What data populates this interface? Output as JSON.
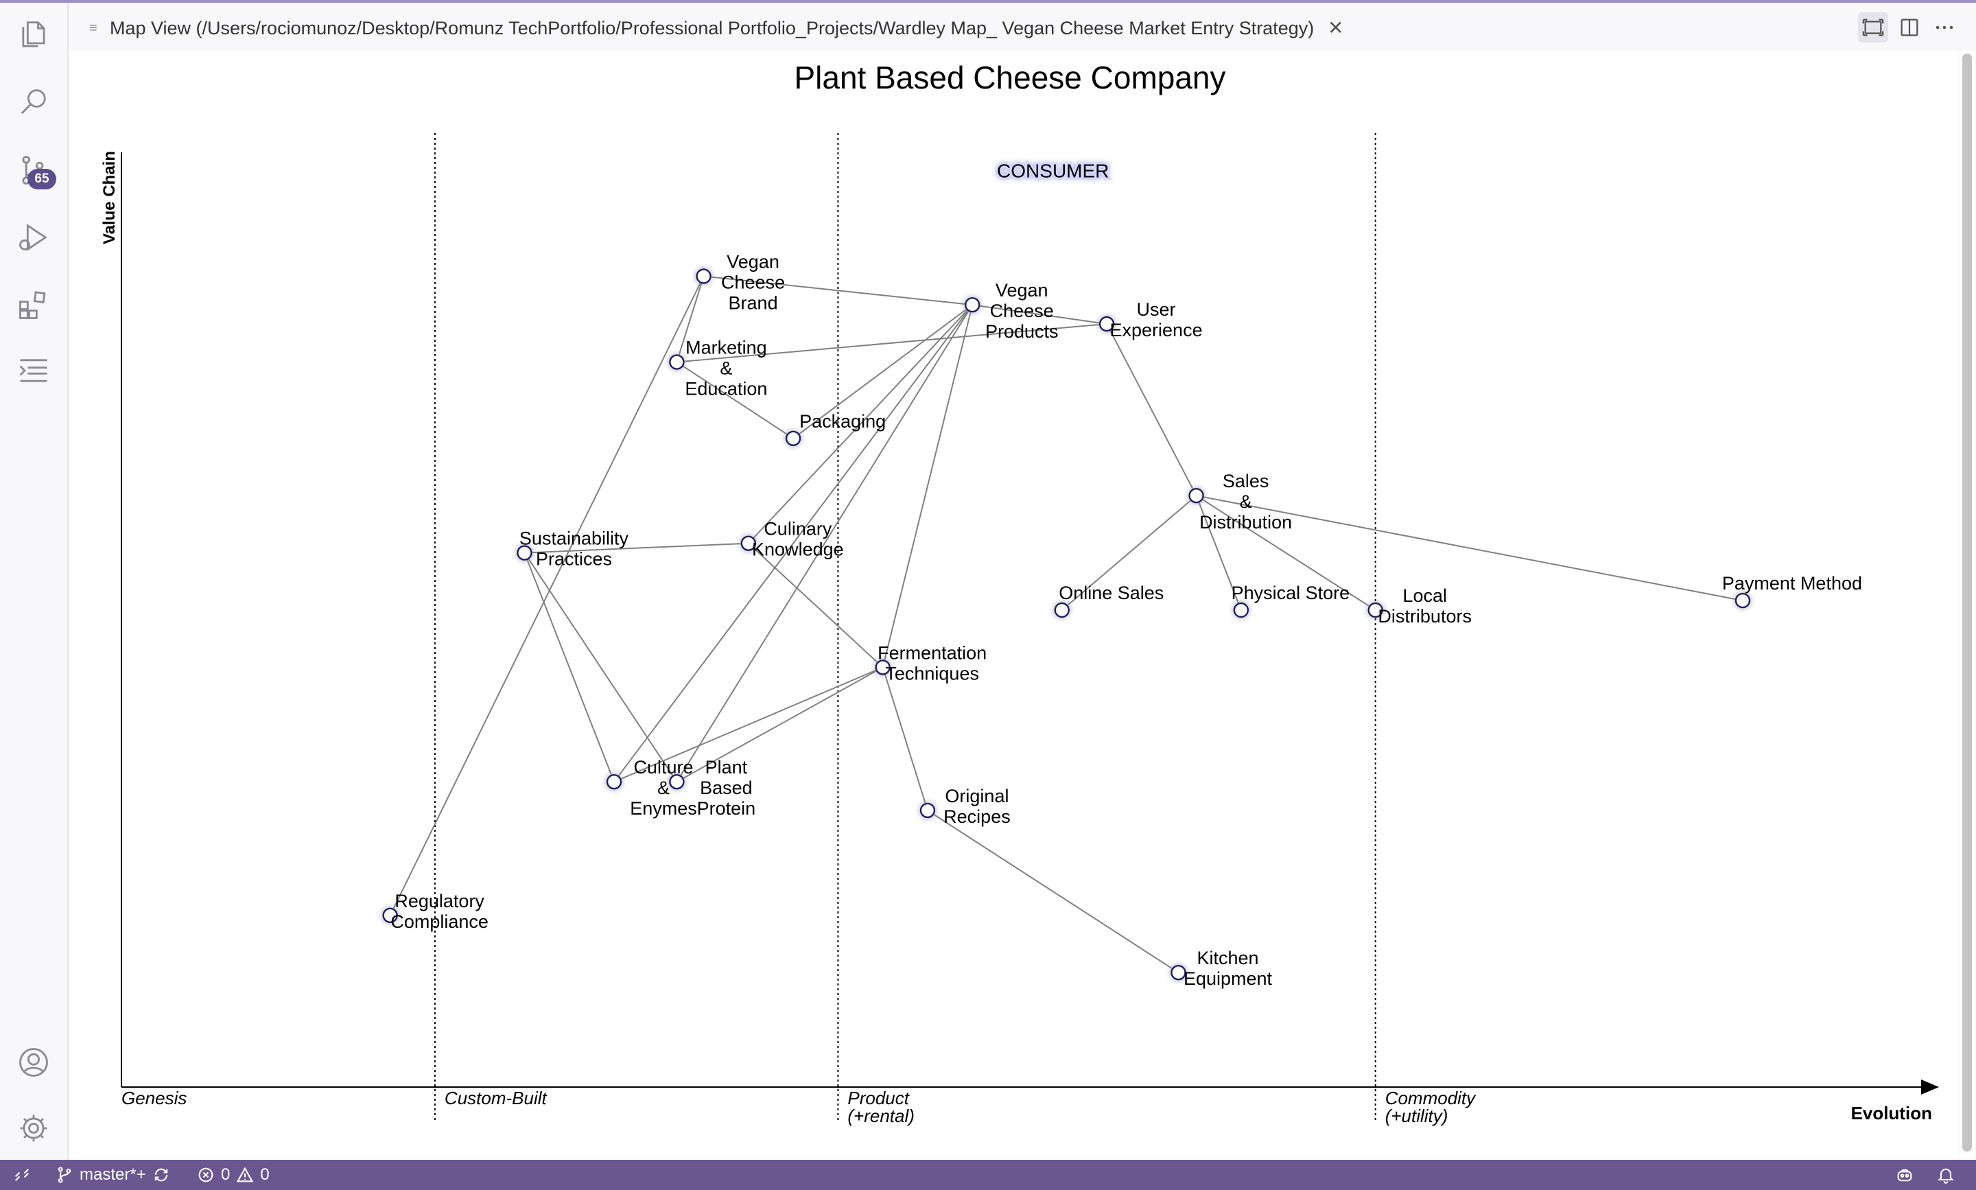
{
  "tab": {
    "title": "Map View (/Users/rociomunoz/Desktop/Romunz TechPortfolio/Professional Portfolio_Projects/Wardley Map_ Vegan Cheese Market Entry Strategy)",
    "close": "✕"
  },
  "activity_bar": {
    "icons": [
      "explorer-icon",
      "search-icon",
      "source-control-icon",
      "run-debug-icon",
      "extensions-icon",
      "outline-icon",
      "account-icon",
      "settings-gear-icon"
    ],
    "source_control_badge": "65"
  },
  "status_bar": {
    "branch": "master*+",
    "errors": "0",
    "warnings": "0"
  },
  "map": {
    "title": "Plant Based Cheese Company",
    "y_axis_label": "Value Chain",
    "x_axis_label": "Evolution",
    "stages": [
      {
        "lines": [
          "Genesis"
        ],
        "evolution": 0.0
      },
      {
        "lines": [
          "Custom-Built"
        ],
        "evolution": 0.175
      },
      {
        "lines": [
          "Product",
          "(+rental)"
        ],
        "evolution": 0.4
      },
      {
        "lines": [
          "Commodity",
          "(+utility)"
        ],
        "evolution": 0.7
      }
    ],
    "anchor": {
      "name": "CONSUMER",
      "visibility": 0.96,
      "evolution": 0.52
    },
    "components": [
      {
        "id": "brand",
        "lines": [
          "Vegan",
          "Cheese",
          "Brand"
        ],
        "visibility": 0.85,
        "evolution": 0.325
      },
      {
        "id": "marketing",
        "lines": [
          "Marketing",
          "&",
          "Education"
        ],
        "visibility": 0.76,
        "evolution": 0.31
      },
      {
        "id": "packaging",
        "lines": [
          "Packaging"
        ],
        "visibility": 0.68,
        "evolution": 0.375
      },
      {
        "id": "products",
        "lines": [
          "Vegan",
          "Cheese",
          "Products"
        ],
        "visibility": 0.82,
        "evolution": 0.475
      },
      {
        "id": "ux",
        "lines": [
          "User",
          "Experience"
        ],
        "visibility": 0.8,
        "evolution": 0.55
      },
      {
        "id": "sales",
        "lines": [
          "Sales",
          "&",
          "Distribution"
        ],
        "visibility": 0.62,
        "evolution": 0.6
      },
      {
        "id": "culinary",
        "lines": [
          "Culinary",
          "Knowledge"
        ],
        "visibility": 0.57,
        "evolution": 0.35
      },
      {
        "id": "sustain",
        "lines": [
          "Sustainability",
          "Practices"
        ],
        "visibility": 0.56,
        "evolution": 0.225
      },
      {
        "id": "online",
        "lines": [
          "Online Sales"
        ],
        "visibility": 0.5,
        "evolution": 0.525
      },
      {
        "id": "physical",
        "lines": [
          "Physical Store"
        ],
        "visibility": 0.5,
        "evolution": 0.625
      },
      {
        "id": "local",
        "lines": [
          "Local",
          "Distributors"
        ],
        "visibility": 0.5,
        "evolution": 0.7
      },
      {
        "id": "payment",
        "lines": [
          "Payment Method"
        ],
        "visibility": 0.51,
        "evolution": 0.905
      },
      {
        "id": "fermentation",
        "lines": [
          "Fermentation",
          "Techniques"
        ],
        "visibility": 0.44,
        "evolution": 0.425
      },
      {
        "id": "culture",
        "lines": [
          "Culture",
          "&",
          "Enymes"
        ],
        "visibility": 0.32,
        "evolution": 0.275
      },
      {
        "id": "protein",
        "lines": [
          "Plant",
          "Based",
          "Protein"
        ],
        "visibility": 0.32,
        "evolution": 0.31
      },
      {
        "id": "recipes",
        "lines": [
          "Original",
          "Recipes"
        ],
        "visibility": 0.29,
        "evolution": 0.45
      },
      {
        "id": "regulatory",
        "lines": [
          "Regulatory",
          "Compliance"
        ],
        "visibility": 0.18,
        "evolution": 0.15
      },
      {
        "id": "kitchen",
        "lines": [
          "Kitchen",
          "Equipment"
        ],
        "visibility": 0.12,
        "evolution": 0.59
      }
    ],
    "links": [
      [
        "brand",
        "products"
      ],
      [
        "brand",
        "marketing"
      ],
      [
        "brand",
        "regulatory"
      ],
      [
        "marketing",
        "packaging"
      ],
      [
        "marketing",
        "ux"
      ],
      [
        "products",
        "ux"
      ],
      [
        "products",
        "packaging"
      ],
      [
        "products",
        "culinary"
      ],
      [
        "products",
        "fermentation"
      ],
      [
        "products",
        "culture"
      ],
      [
        "products",
        "protein"
      ],
      [
        "ux",
        "sales"
      ],
      [
        "sales",
        "online"
      ],
      [
        "sales",
        "physical"
      ],
      [
        "sales",
        "local"
      ],
      [
        "sales",
        "payment"
      ],
      [
        "sustain",
        "culinary"
      ],
      [
        "sustain",
        "culture"
      ],
      [
        "sustain",
        "protein"
      ],
      [
        "culinary",
        "fermentation"
      ],
      [
        "fermentation",
        "culture"
      ],
      [
        "fermentation",
        "protein"
      ],
      [
        "fermentation",
        "recipes"
      ],
      [
        "recipes",
        "kitchen"
      ]
    ]
  }
}
